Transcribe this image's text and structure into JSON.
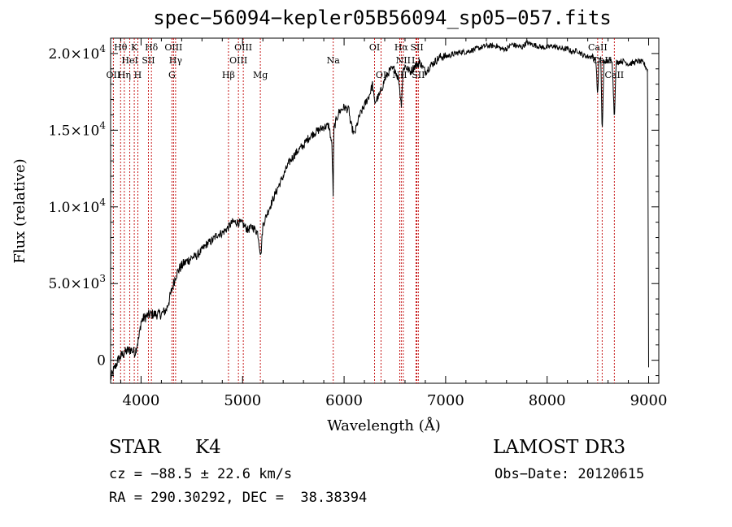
{
  "chart_data": {
    "type": "line",
    "title": "spec−56094−kepler05B56094_sp05−057.fits",
    "xlabel": "Wavelength (Å)",
    "ylabel": "Flux (relative)",
    "xlim": [
      3700,
      9100
    ],
    "ylim": [
      -1500,
      21000
    ],
    "x_ticks": [
      {
        "value": 4000,
        "label": "4000"
      },
      {
        "value": 5000,
        "label": "5000"
      },
      {
        "value": 6000,
        "label": "6000"
      },
      {
        "value": 7000,
        "label": "7000"
      },
      {
        "value": 8000,
        "label": "8000"
      },
      {
        "value": 9000,
        "label": "9000"
      }
    ],
    "y_ticks": [
      {
        "value": 0,
        "mant": "0",
        "exp": ""
      },
      {
        "value": 5000,
        "mant": "5.0×10",
        "exp": "3"
      },
      {
        "value": 10000,
        "mant": "1.0×10",
        "exp": "4"
      },
      {
        "value": 15000,
        "mant": "1.5×10",
        "exp": "4"
      },
      {
        "value": 20000,
        "mant": "2.0×10",
        "exp": "4"
      }
    ],
    "series": [
      {
        "name": "spectrum",
        "x": [
          3700,
          3740,
          3780,
          3820,
          3860,
          3900,
          3940,
          3980,
          4000,
          4020,
          4060,
          4100,
          4150,
          4200,
          4250,
          4300,
          4340,
          4380,
          4420,
          4460,
          4500,
          4550,
          4600,
          4650,
          4700,
          4750,
          4800,
          4850,
          4900,
          4950,
          5000,
          5050,
          5100,
          5150,
          5180,
          5200,
          5250,
          5300,
          5350,
          5400,
          5450,
          5500,
          5550,
          5600,
          5650,
          5700,
          5750,
          5800,
          5850,
          5880,
          5892,
          5900,
          5920,
          5950,
          6000,
          6050,
          6060,
          6100,
          6150,
          6200,
          6250,
          6280,
          6300,
          6350,
          6400,
          6450,
          6500,
          6540,
          6563,
          6580,
          6600,
          6650,
          6700,
          6750,
          6800,
          6850,
          6900,
          6950,
          7000,
          7050,
          7100,
          7150,
          7200,
          7250,
          7300,
          7350,
          7400,
          7450,
          7500,
          7550,
          7600,
          7650,
          7700,
          7750,
          7800,
          7850,
          7900,
          7950,
          8000,
          8050,
          8100,
          8150,
          8200,
          8250,
          8300,
          8350,
          8400,
          8450,
          8480,
          8498,
          8510,
          8530,
          8542,
          8560,
          8600,
          8640,
          8662,
          8680,
          8720,
          8760,
          8800,
          8850,
          8900,
          8950,
          8990,
          9000
        ],
        "y": [
          -1200,
          -500,
          100,
          400,
          600,
          700,
          500,
          1500,
          2500,
          2700,
          2900,
          3000,
          3000,
          3000,
          3300,
          4500,
          5500,
          6000,
          6300,
          6500,
          6700,
          6800,
          7200,
          7600,
          7800,
          8200,
          8300,
          8600,
          9000,
          9000,
          8900,
          8500,
          8700,
          8300,
          6800,
          8800,
          9700,
          10500,
          11300,
          12000,
          12800,
          13300,
          13700,
          14000,
          14500,
          14800,
          15000,
          15200,
          15300,
          14000,
          10800,
          15100,
          15600,
          16200,
          16500,
          16300,
          15500,
          14700,
          15900,
          16600,
          17300,
          18000,
          16800,
          17300,
          18300,
          18900,
          19000,
          18200,
          16600,
          18900,
          19200,
          18800,
          19200,
          19400,
          18800,
          19200,
          19500,
          19800,
          19800,
          19900,
          20000,
          20100,
          20100,
          20200,
          20300,
          20400,
          20500,
          20500,
          20500,
          20300,
          20300,
          20600,
          20500,
          20400,
          20700,
          20600,
          20500,
          20400,
          20400,
          20500,
          20400,
          20300,
          20300,
          20100,
          20200,
          19900,
          19800,
          19800,
          19600,
          17200,
          19600,
          19600,
          14600,
          19500,
          19500,
          19600,
          15800,
          19400,
          19500,
          19500,
          19300,
          19400,
          19500,
          19400,
          18900,
          -400
        ]
      }
    ],
    "lines": [
      {
        "name": "OII",
        "wl": 3727,
        "label": "OII",
        "row": 3
      },
      {
        "name": "H-theta",
        "wl": 3798,
        "label": "Hθ",
        "row": 1
      },
      {
        "name": "H-eta",
        "wl": 3835,
        "label": "Hη",
        "row": 3
      },
      {
        "name": "HeI",
        "wl": 3889,
        "label": "HeI",
        "row": 2
      },
      {
        "name": "K",
        "wl": 3933,
        "label": "K",
        "row": 1
      },
      {
        "name": "H",
        "wl": 3968,
        "label": "H",
        "row": 3
      },
      {
        "name": "SII",
        "wl": 4072,
        "label": "SII",
        "row": 2
      },
      {
        "name": "H-delta",
        "wl": 4102,
        "label": "Hδ",
        "row": 1
      },
      {
        "name": "G",
        "wl": 4304,
        "label": "G",
        "row": 3
      },
      {
        "name": "OIII",
        "wl": 4320,
        "label": "OIII",
        "row": 1
      },
      {
        "name": "H-gamma",
        "wl": 4340,
        "label": "Hγ",
        "row": 2
      },
      {
        "name": "H-beta",
        "wl": 4861,
        "label": "Hβ",
        "row": 3
      },
      {
        "name": "OIII",
        "wl": 4959,
        "label": "OIII",
        "row": 2
      },
      {
        "name": "OIII",
        "wl": 5007,
        "label": "OIII",
        "row": 1
      },
      {
        "name": "Mg",
        "wl": 5175,
        "label": "Mg",
        "row": 3
      },
      {
        "name": "Na",
        "wl": 5893,
        "label": "Na",
        "row": 2
      },
      {
        "name": "OI",
        "wl": 6300,
        "label": "OI",
        "row": 1
      },
      {
        "name": "OI",
        "wl": 6364,
        "label": "OI",
        "row": 3
      },
      {
        "name": "NII",
        "wl": 6548,
        "label": "NII",
        "row": 3
      },
      {
        "name": "H-alpha",
        "wl": 6563,
        "label": "Hα",
        "row": 1
      },
      {
        "name": "NII",
        "wl": 6583,
        "label": "NII",
        "row": 2
      },
      {
        "name": "Li",
        "wl": 6708,
        "label": "Li",
        "row": 2
      },
      {
        "name": "SII",
        "wl": 6717,
        "label": "SII",
        "row": 1
      },
      {
        "name": "SII",
        "wl": 6731,
        "label": "SII",
        "row": 3
      },
      {
        "name": "CaII",
        "wl": 8498,
        "label": "CaII",
        "row": 1
      },
      {
        "name": "CaII",
        "wl": 8542,
        "label": "CaII",
        "row": 2
      },
      {
        "name": "CaII",
        "wl": 8662,
        "label": "CaII",
        "row": 3
      }
    ],
    "colors": {
      "spectrum": "#000000",
      "lines": "#c00000"
    }
  },
  "info": {
    "class_label": "STAR",
    "subclass": "K4",
    "survey": "LAMOST DR3",
    "redshift": "cz = −88.5 ± 22.6 km/s",
    "obs_date": "Obs−Date: 20120615",
    "coords": "RA = 290.30292, DEC =  38.38394"
  }
}
